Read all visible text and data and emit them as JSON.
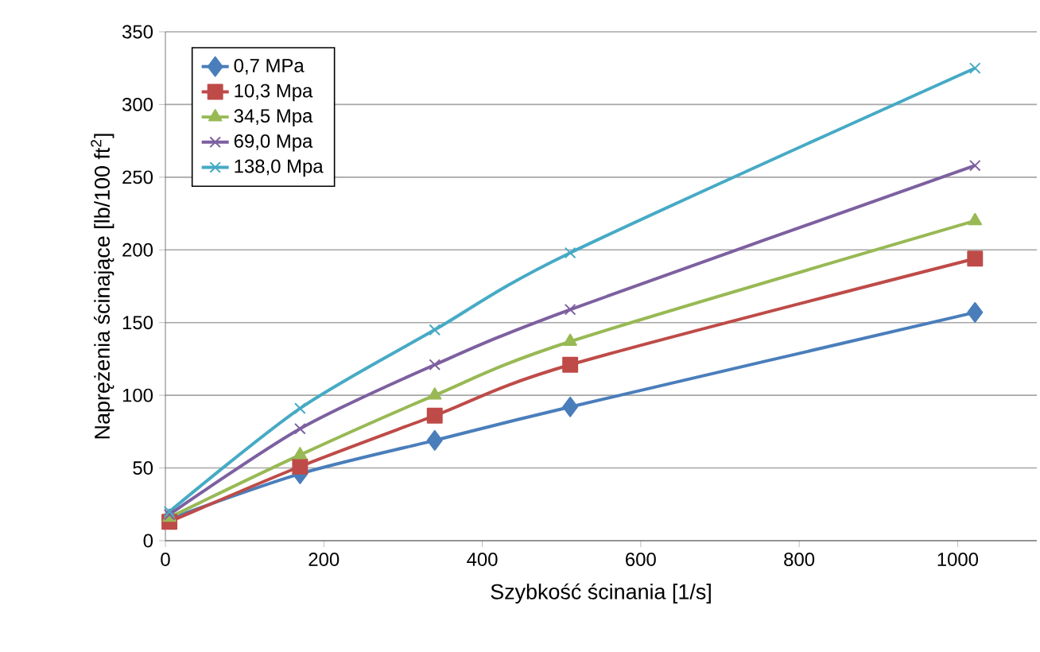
{
  "chart_data": {
    "type": "line",
    "xlabel": "Szybkość ścinania [1/s]",
    "ylabel": "Naprężenia ścinające [lb/100 ft$^{2}$]",
    "x": [
      5.1,
      170,
      340,
      511,
      1022
    ],
    "series": [
      {
        "name": "0,7 MPa",
        "color": "#4a7ebb",
        "marker": "diamond",
        "values": [
          15,
          46,
          69,
          92,
          157
        ]
      },
      {
        "name": "10,3 Mpa",
        "color": "#be4b48",
        "marker": "square",
        "values": [
          13,
          51,
          86,
          121,
          194
        ]
      },
      {
        "name": "34,5 Mpa",
        "color": "#98b954",
        "marker": "triangle",
        "values": [
          16,
          59,
          100,
          137,
          220
        ]
      },
      {
        "name": "69,0 Mpa",
        "color": "#7d60a0",
        "marker": "cross",
        "values": [
          18,
          77,
          121,
          159,
          258
        ]
      },
      {
        "name": "138,0 Mpa",
        "color": "#46aac5",
        "marker": "cross",
        "values": [
          20,
          91,
          145,
          198,
          325
        ]
      }
    ],
    "xlim": [
      0,
      1100
    ],
    "xticks": [
      0,
      200,
      400,
      600,
      800,
      1000
    ],
    "ylim": [
      0,
      350
    ],
    "yticks": [
      0,
      50,
      100,
      150,
      200,
      250,
      300,
      350
    ],
    "grid": "y",
    "legend": "top left",
    "line_style": "solid"
  }
}
